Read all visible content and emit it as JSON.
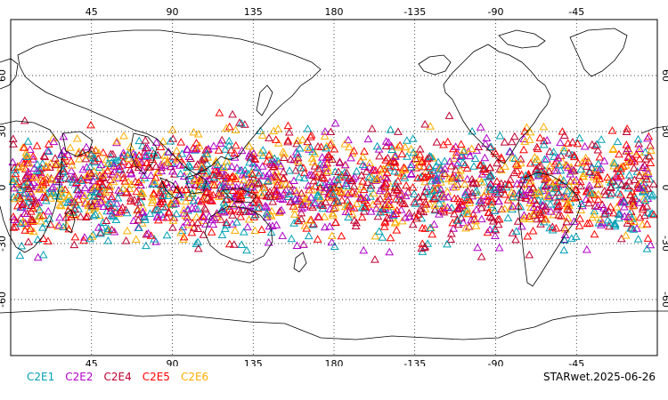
{
  "map": {
    "projection": "cylindrical",
    "lon_range": [
      0,
      360
    ],
    "lat_range": [
      -90,
      90
    ],
    "grid": true,
    "top_lon_ticks": [
      "45",
      "90",
      "135",
      "180",
      "-135",
      "-90",
      "-45"
    ],
    "bottom_lon_ticks": [
      "45",
      "90",
      "135",
      "180",
      "-135",
      "-90",
      "-45"
    ],
    "left_lat_ticks": [
      "60",
      "30",
      "0",
      "-30",
      "-60"
    ],
    "right_lat_ticks": [
      "60",
      "30",
      "0",
      "-30",
      "-60"
    ],
    "marker": "triangle-open",
    "observation_lat_range": [
      -42,
      42
    ]
  },
  "legend": [
    {
      "label": "C2E1",
      "color": "#00a0b4"
    },
    {
      "label": "C2E2",
      "color": "#b000c8"
    },
    {
      "label": "C2E4",
      "color": "#c00030"
    },
    {
      "label": "C2E5",
      "color": "#ff0000"
    },
    {
      "label": "C2E6",
      "color": "#ffae00"
    }
  ],
  "stamp": "STARwet.2025-06-26"
}
